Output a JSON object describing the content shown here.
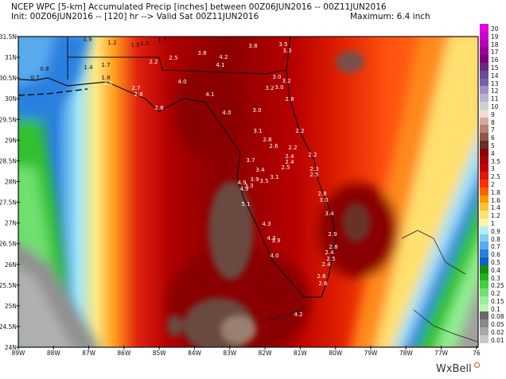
{
  "header": {
    "line1": "NCEP WPC [5-km] Accumulated Precip [inches] between 00Z06JUN2016 -- 00Z11JUN2016",
    "line2": "Init: 00Z06JUN2016 -- [120] hr --> Valid Sat 00Z11JUN2016",
    "maximum": "Maximum: 6.4 inch"
  },
  "axes": {
    "lat_labels": [
      "31.5N",
      "31N",
      "30.5N",
      "30N",
      "29.5N",
      "29N",
      "28.5N",
      "28N",
      "27.5N",
      "27N",
      "26.5N",
      "26N",
      "25.5N",
      "25N",
      "24.5N",
      "24N"
    ],
    "lon_labels": [
      "89W",
      "88W",
      "87W",
      "86W",
      "85W",
      "84W",
      "83W",
      "82W",
      "81W",
      "80W",
      "79W",
      "78W",
      "77W",
      "76"
    ]
  },
  "legend": {
    "unit": "inches",
    "items": [
      {
        "label": "20",
        "color": "#e000e0"
      },
      {
        "label": "19",
        "color": "#cc00cc"
      },
      {
        "label": "18",
        "color": "#b400b4"
      },
      {
        "label": "17",
        "color": "#9c009c"
      },
      {
        "label": "16",
        "color": "#800080"
      },
      {
        "label": "15",
        "color": "#6a2a80"
      },
      {
        "label": "14",
        "color": "#6a4a98"
      },
      {
        "label": "13",
        "color": "#7a60a8"
      },
      {
        "label": "12",
        "color": "#a090c8"
      },
      {
        "label": "11",
        "color": "#b8b0d8"
      },
      {
        "label": "10",
        "color": "#d0d0d0"
      },
      {
        "label": "9",
        "color": "#f0dcd4"
      },
      {
        "label": "8",
        "color": "#d8a898"
      },
      {
        "label": "7",
        "color": "#b88078"
      },
      {
        "label": "6",
        "color": "#905848"
      },
      {
        "label": "5",
        "color": "#6a3028"
      },
      {
        "label": "4",
        "color": "#8a0000"
      },
      {
        "label": "3.5",
        "color": "#aa0000"
      },
      {
        "label": "3",
        "color": "#c80000"
      },
      {
        "label": "2.5",
        "color": "#e01808"
      },
      {
        "label": "2",
        "color": "#ff3000"
      },
      {
        "label": "1.8",
        "color": "#ff6000"
      },
      {
        "label": "1.6",
        "color": "#ff9800"
      },
      {
        "label": "1.4",
        "color": "#ffc030"
      },
      {
        "label": "1.2",
        "color": "#ffe070"
      },
      {
        "label": "1",
        "color": "#fff4a8"
      },
      {
        "label": "0.9",
        "color": "#b0eef8"
      },
      {
        "label": "0.8",
        "color": "#88ccf4"
      },
      {
        "label": "0.7",
        "color": "#5aaaf0"
      },
      {
        "label": "0.6",
        "color": "#2a80e0"
      },
      {
        "label": "0.5",
        "color": "#1060c8"
      },
      {
        "label": "0.4",
        "color": "#109010"
      },
      {
        "label": "0.3",
        "color": "#20b020"
      },
      {
        "label": "0.25",
        "color": "#40d040"
      },
      {
        "label": "0.2",
        "color": "#70e070"
      },
      {
        "label": "0.15",
        "color": "#98f098"
      },
      {
        "label": "0.1",
        "color": "#b8f8b0"
      },
      {
        "label": "0.08",
        "color": "#686868"
      },
      {
        "label": "0.05",
        "color": "#888888"
      },
      {
        "label": "0.02",
        "color": "#a8a8a8"
      },
      {
        "label": "0.01",
        "color": "#c8c8c8"
      }
    ]
  },
  "contour_labels": [
    "0.9",
    "1.2",
    "1.5",
    "1.5",
    "1.7",
    "2.2",
    "1.4",
    "1.7",
    "0.8",
    "0.7",
    "1.8",
    "2.0",
    "2.7",
    "2.8",
    "2.8",
    "2.5",
    "3.8",
    "3.8",
    "4.2",
    "4.1",
    "3.5",
    "3.3",
    "4.0",
    "4.1",
    "3.0",
    "3.2",
    "3.2",
    "3.0",
    "2.8",
    "4.0",
    "3.0",
    "3.1",
    "2.2",
    "2.8",
    "2.6",
    "2.2",
    "2.4",
    "2.4",
    "3.7",
    "3.4",
    "2.5",
    "2.2",
    "2.3",
    "2.5",
    "3.9",
    "3.5",
    "3.1",
    "4.9",
    "4.9",
    "3.3",
    "5.1",
    "2.8",
    "3.0",
    "3.4",
    "4.3",
    "2.9",
    "4.3",
    "3.9",
    "4.0",
    "2.8",
    "2.4",
    "2.5",
    "2.4",
    "2.6",
    "2.6",
    "4.2"
  ],
  "brand": "WxBell"
}
